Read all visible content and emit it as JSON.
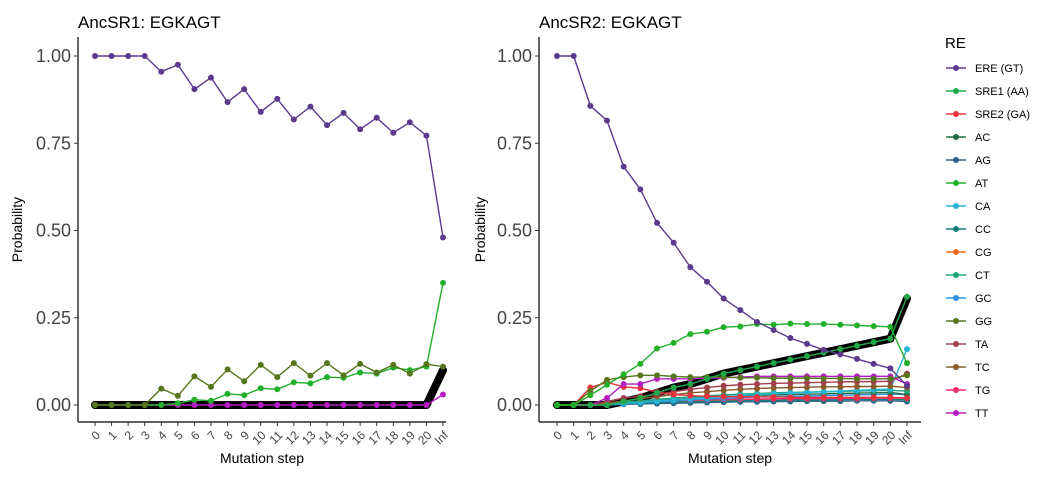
{
  "legend": {
    "title": "RE",
    "entries": [
      {
        "name": "ERE (GT)",
        "color": "#5b3a8e"
      },
      {
        "name": "SRE1 (AA)",
        "color": "#1fa84a"
      },
      {
        "name": "SRE2 (GA)",
        "color": "#e8323c"
      },
      {
        "name": "AC",
        "color": "#1f6e43"
      },
      {
        "name": "AG",
        "color": "#2f5f8a"
      },
      {
        "name": "AT",
        "color": "#22b02a"
      },
      {
        "name": "CA",
        "color": "#26b5d6"
      },
      {
        "name": "CC",
        "color": "#167d7f"
      },
      {
        "name": "CG",
        "color": "#f06a1a"
      },
      {
        "name": "CT",
        "color": "#1ea37a"
      },
      {
        "name": "GC",
        "color": "#2e8fe0"
      },
      {
        "name": "GG",
        "color": "#56761c"
      },
      {
        "name": "TA",
        "color": "#a23e4d"
      },
      {
        "name": "TC",
        "color": "#8a5a2b"
      },
      {
        "name": "TG",
        "color": "#f0266e"
      },
      {
        "name": "TT",
        "color": "#b51ec2"
      }
    ]
  },
  "chart_data": [
    {
      "type": "line",
      "title": "AncSR1: EGKAGT",
      "xlabel": "Mutation step",
      "ylabel": "Probability",
      "ylim": [
        0,
        1
      ],
      "yticks": [
        "0.00",
        "0.25",
        "0.50",
        "0.75",
        "1.00"
      ],
      "categories": [
        "0",
        "1",
        "2",
        "3",
        "4",
        "5",
        "6",
        "7",
        "8",
        "9",
        "10",
        "11",
        "12",
        "13",
        "14",
        "15",
        "16",
        "17",
        "18",
        "19",
        "20",
        "Inf"
      ],
      "highlight": {
        "values": [
          0,
          0,
          0,
          0,
          0,
          0,
          0,
          0,
          0,
          0,
          0,
          0,
          0,
          0,
          0,
          0,
          0,
          0,
          0,
          0,
          0,
          0.1
        ]
      },
      "series": [
        {
          "name": "ERE (GT)",
          "values": [
            1.0,
            1.0,
            1.0,
            1.0,
            0.955,
            0.975,
            0.905,
            0.938,
            0.868,
            0.905,
            0.84,
            0.877,
            0.818,
            0.855,
            0.802,
            0.837,
            0.79,
            0.823,
            0.78,
            0.81,
            0.772,
            0.48
          ]
        },
        {
          "name": "GG",
          "values": [
            0,
            0,
            0,
            0,
            0.047,
            0.026,
            0.082,
            0.052,
            0.102,
            0.068,
            0.115,
            0.08,
            0.12,
            0.084,
            0.12,
            0.085,
            0.118,
            0.093,
            0.115,
            0.09,
            0.117,
            0.11
          ]
        },
        {
          "name": "AT",
          "values": [
            0,
            0,
            0,
            0,
            0,
            0.005,
            0.015,
            0.012,
            0.032,
            0.028,
            0.048,
            0.045,
            0.065,
            0.062,
            0.08,
            0.078,
            0.093,
            0.09,
            0.107,
            0.1,
            0.11,
            0.35
          ]
        },
        {
          "name": "TT",
          "values": [
            0,
            0,
            0,
            0,
            0,
            0,
            0,
            0,
            0,
            0,
            0,
            0,
            0,
            0,
            0,
            0,
            0,
            0,
            0,
            0,
            0,
            0.03
          ]
        }
      ]
    },
    {
      "type": "line",
      "title": "AncSR2: EGKAGT",
      "xlabel": "Mutation step",
      "ylabel": "Probability",
      "ylim": [
        0,
        1
      ],
      "yticks": [
        "0.00",
        "0.25",
        "0.50",
        "0.75",
        "1.00"
      ],
      "categories": [
        "0",
        "1",
        "2",
        "3",
        "4",
        "5",
        "6",
        "7",
        "8",
        "9",
        "10",
        "11",
        "12",
        "13",
        "14",
        "15",
        "16",
        "17",
        "18",
        "19",
        "20",
        "Inf"
      ],
      "highlight": {
        "values": [
          0,
          0,
          0,
          0,
          0.01,
          0.02,
          0.035,
          0.05,
          0.06,
          0.075,
          0.09,
          0.1,
          0.11,
          0.12,
          0.13,
          0.14,
          0.15,
          0.16,
          0.17,
          0.18,
          0.19,
          0.305
        ]
      },
      "series": [
        {
          "name": "ERE (GT)",
          "values": [
            1.0,
            1.0,
            0.857,
            0.815,
            0.683,
            0.618,
            0.522,
            0.465,
            0.395,
            0.353,
            0.305,
            0.272,
            0.238,
            0.215,
            0.192,
            0.175,
            0.158,
            0.145,
            0.132,
            0.118,
            0.105,
            0.055
          ]
        },
        {
          "name": "AT",
          "values": [
            0,
            0,
            0.028,
            0.058,
            0.088,
            0.118,
            0.162,
            0.178,
            0.203,
            0.21,
            0.223,
            0.225,
            0.232,
            0.23,
            0.233,
            0.232,
            0.232,
            0.23,
            0.228,
            0.226,
            0.224,
            0.12
          ]
        },
        {
          "name": "SRE1 (AA)",
          "values": [
            0,
            0,
            0,
            0,
            0.01,
            0.02,
            0.035,
            0.05,
            0.06,
            0.075,
            0.09,
            0.1,
            0.11,
            0.12,
            0.13,
            0.14,
            0.15,
            0.16,
            0.17,
            0.18,
            0.19,
            0.31
          ]
        },
        {
          "name": "GG",
          "values": [
            0,
            0,
            0.04,
            0.072,
            0.08,
            0.085,
            0.085,
            0.082,
            0.08,
            0.08,
            0.08,
            0.078,
            0.078,
            0.077,
            0.077,
            0.077,
            0.076,
            0.076,
            0.075,
            0.075,
            0.075,
            0.085
          ]
        },
        {
          "name": "TT",
          "values": [
            0,
            0,
            0,
            0.02,
            0.06,
            0.06,
            0.075,
            0.075,
            0.075,
            0.077,
            0.078,
            0.08,
            0.082,
            0.082,
            0.082,
            0.082,
            0.082,
            0.082,
            0.082,
            0.082,
            0.082,
            0.06
          ]
        },
        {
          "name": "SRE2 (GA)",
          "values": [
            0,
            0,
            0.05,
            0.065,
            0.052,
            0.048,
            0.037,
            0.03,
            0.027,
            0.025,
            0.024,
            0.024,
            0.023,
            0.023,
            0.022,
            0.022,
            0.022,
            0.022,
            0.022,
            0.022,
            0.022,
            0.02
          ]
        },
        {
          "name": "TA",
          "values": [
            0,
            0,
            0,
            0.01,
            0.02,
            0.025,
            0.03,
            0.038,
            0.045,
            0.05,
            0.055,
            0.058,
            0.06,
            0.062,
            0.063,
            0.064,
            0.065,
            0.066,
            0.067,
            0.067,
            0.068,
            0.09
          ]
        },
        {
          "name": "TC",
          "values": [
            0,
            0,
            0,
            0.005,
            0.012,
            0.018,
            0.024,
            0.03,
            0.035,
            0.038,
            0.042,
            0.045,
            0.047,
            0.049,
            0.05,
            0.051,
            0.052,
            0.052,
            0.053,
            0.053,
            0.054,
            0.05
          ]
        },
        {
          "name": "CA",
          "values": [
            0,
            0,
            0,
            0,
            0.004,
            0.008,
            0.012,
            0.015,
            0.018,
            0.021,
            0.024,
            0.027,
            0.03,
            0.032,
            0.034,
            0.036,
            0.038,
            0.04,
            0.042,
            0.044,
            0.046,
            0.16
          ]
        },
        {
          "name": "CT",
          "values": [
            0,
            0,
            0,
            0.004,
            0.008,
            0.012,
            0.016,
            0.02,
            0.023,
            0.026,
            0.029,
            0.031,
            0.033,
            0.035,
            0.036,
            0.037,
            0.038,
            0.039,
            0.04,
            0.041,
            0.042,
            0.04
          ]
        },
        {
          "name": "AC",
          "values": [
            0,
            0,
            0,
            0.003,
            0.006,
            0.01,
            0.013,
            0.016,
            0.019,
            0.022,
            0.024,
            0.026,
            0.028,
            0.029,
            0.03,
            0.031,
            0.032,
            0.033,
            0.034,
            0.035,
            0.036,
            0.03
          ]
        },
        {
          "name": "GC",
          "values": [
            0,
            0,
            0,
            0.002,
            0.004,
            0.007,
            0.01,
            0.012,
            0.015,
            0.017,
            0.019,
            0.021,
            0.023,
            0.024,
            0.025,
            0.026,
            0.027,
            0.028,
            0.029,
            0.03,
            0.031,
            0.03
          ]
        },
        {
          "name": "TG",
          "values": [
            0,
            0,
            0,
            0.005,
            0.008,
            0.01,
            0.012,
            0.013,
            0.014,
            0.015,
            0.016,
            0.017,
            0.017,
            0.018,
            0.018,
            0.018,
            0.019,
            0.019,
            0.019,
            0.02,
            0.02,
            0.02
          ]
        },
        {
          "name": "CC",
          "values": [
            0,
            0,
            0,
            0.002,
            0.003,
            0.005,
            0.006,
            0.008,
            0.009,
            0.01,
            0.011,
            0.012,
            0.013,
            0.013,
            0.014,
            0.014,
            0.015,
            0.015,
            0.016,
            0.016,
            0.016,
            0.015
          ]
        },
        {
          "name": "CG",
          "values": [
            0,
            0,
            0,
            0.002,
            0.004,
            0.006,
            0.008,
            0.01,
            0.012,
            0.013,
            0.014,
            0.015,
            0.016,
            0.017,
            0.017,
            0.018,
            0.018,
            0.019,
            0.019,
            0.02,
            0.02,
            0.02
          ]
        },
        {
          "name": "AG",
          "values": [
            0,
            0,
            0,
            0,
            0.002,
            0.003,
            0.004,
            0.005,
            0.006,
            0.007,
            0.008,
            0.009,
            0.009,
            0.01,
            0.01,
            0.011,
            0.011,
            0.011,
            0.012,
            0.012,
            0.012,
            0.01
          ]
        }
      ]
    }
  ]
}
